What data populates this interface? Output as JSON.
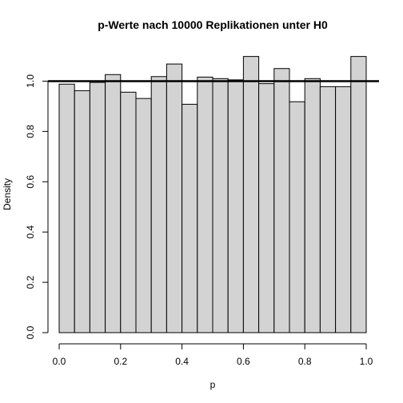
{
  "chart_data": {
    "type": "bar",
    "title": "p-Werte nach 10000 Replikationen unter H0",
    "xlabel": "p",
    "ylabel": "Density",
    "xlim": [
      0,
      1
    ],
    "ylim": [
      0,
      1.1
    ],
    "bin_width": 0.05,
    "bin_edges": [
      0.0,
      0.05,
      0.1,
      0.15,
      0.2,
      0.25,
      0.3,
      0.35,
      0.4,
      0.45,
      0.5,
      0.55,
      0.6,
      0.65,
      0.7,
      0.75,
      0.8,
      0.85,
      0.9,
      0.95,
      1.0
    ],
    "values": [
      0.988,
      0.962,
      0.995,
      1.026,
      0.956,
      0.931,
      1.018,
      1.068,
      0.908,
      1.016,
      1.01,
      1.005,
      1.098,
      0.99,
      1.05,
      0.918,
      1.01,
      0.978,
      0.978,
      1.098
    ],
    "reference_line": {
      "y": 1.0
    },
    "x_ticks": [
      "0.0",
      "0.2",
      "0.4",
      "0.6",
      "0.8",
      "1.0"
    ],
    "x_tick_values": [
      0,
      0.2,
      0.4,
      0.6,
      0.8,
      1.0
    ],
    "y_ticks": [
      "0.0",
      "0.2",
      "0.4",
      "0.6",
      "0.8",
      "1.0"
    ],
    "y_tick_values": [
      0,
      0.2,
      0.4,
      0.6,
      0.8,
      1.0
    ],
    "grid": false,
    "legend": "none",
    "colors": {
      "bar_fill": "#d3d3d3",
      "bar_stroke": "#000000",
      "line": "#000000"
    }
  }
}
